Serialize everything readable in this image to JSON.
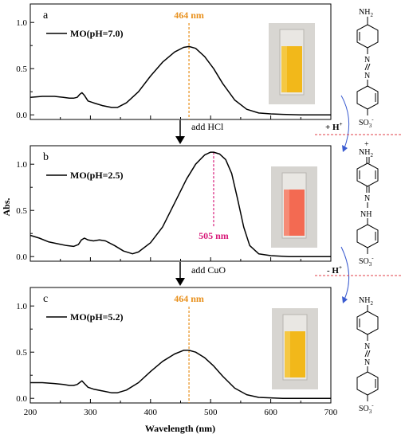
{
  "colors": {
    "line": "#000000",
    "peak_orange": "#e8901c",
    "peak_magenta": "#d81b7a",
    "divider_red": "#e0404a",
    "arc_blue": "#3a5bd0"
  },
  "y_axis_label": "Abs.",
  "x_axis_label": "Wavelength (nm)",
  "x_ticks": [
    "200",
    "300",
    "400",
    "500",
    "600",
    "700"
  ],
  "steps": {
    "acid": "add HCl",
    "cuo": "add CuO"
  },
  "proton": {
    "plus": "+ H",
    "minus": "- H",
    "sup": "+"
  },
  "chem": {
    "nh2": "NH",
    "so3": "SO",
    "nh": "NH",
    "two": "2",
    "three": "3",
    "minus": "-",
    "plus": "+"
  },
  "chart_data": [
    {
      "type": "line",
      "panel": "a",
      "xlim": [
        200,
        700
      ],
      "ylim": [
        -0.05,
        1.2
      ],
      "y_ticks": [
        "0.0",
        "0.5",
        "1.0"
      ],
      "series": [
        {
          "name": "MO(pH=7.0)",
          "x": [
            200,
            220,
            240,
            255,
            265,
            272,
            278,
            282,
            286,
            290,
            296,
            305,
            320,
            335,
            345,
            360,
            380,
            400,
            420,
            440,
            455,
            464,
            475,
            490,
            505,
            520,
            540,
            560,
            580,
            600,
            620,
            650,
            680,
            700
          ],
          "y": [
            0.19,
            0.2,
            0.2,
            0.19,
            0.18,
            0.18,
            0.19,
            0.22,
            0.24,
            0.21,
            0.15,
            0.13,
            0.1,
            0.08,
            0.08,
            0.13,
            0.25,
            0.42,
            0.57,
            0.68,
            0.73,
            0.74,
            0.72,
            0.63,
            0.5,
            0.34,
            0.16,
            0.06,
            0.02,
            0.01,
            0.005,
            0.0,
            0.0,
            0.0
          ]
        }
      ],
      "peak_label": "464 nm",
      "peak_x": 464
    },
    {
      "type": "line",
      "panel": "b",
      "xlim": [
        200,
        700
      ],
      "ylim": [
        -0.05,
        1.2
      ],
      "y_ticks": [
        "0.0",
        "0.5",
        "1.0"
      ],
      "series": [
        {
          "name": "MO(pH=2.5)",
          "x": [
            200,
            215,
            230,
            245,
            260,
            272,
            280,
            285,
            290,
            296,
            305,
            315,
            325,
            340,
            355,
            370,
            380,
            400,
            420,
            440,
            460,
            475,
            490,
            500,
            505,
            515,
            525,
            535,
            545,
            555,
            565,
            580,
            600,
            630,
            660,
            700
          ],
          "y": [
            0.23,
            0.2,
            0.16,
            0.14,
            0.12,
            0.11,
            0.13,
            0.18,
            0.2,
            0.18,
            0.17,
            0.18,
            0.17,
            0.12,
            0.06,
            0.03,
            0.05,
            0.15,
            0.32,
            0.58,
            0.84,
            1.0,
            1.1,
            1.13,
            1.13,
            1.11,
            1.05,
            0.9,
            0.62,
            0.32,
            0.12,
            0.03,
            0.01,
            0.0,
            0.0,
            0.0
          ]
        }
      ],
      "peak_label": "505 nm",
      "peak_x": 505
    },
    {
      "type": "line",
      "panel": "c",
      "xlim": [
        200,
        700
      ],
      "ylim": [
        -0.05,
        1.2
      ],
      "y_ticks": [
        "0.0",
        "0.5",
        "1.0"
      ],
      "series": [
        {
          "name": "MO(pH=5.2)",
          "x": [
            200,
            220,
            240,
            255,
            265,
            272,
            278,
            282,
            286,
            290,
            296,
            305,
            320,
            335,
            345,
            360,
            380,
            400,
            420,
            440,
            455,
            464,
            475,
            490,
            505,
            520,
            540,
            560,
            580,
            600,
            620,
            650,
            680,
            700
          ],
          "y": [
            0.17,
            0.17,
            0.16,
            0.15,
            0.14,
            0.14,
            0.15,
            0.17,
            0.19,
            0.16,
            0.12,
            0.1,
            0.08,
            0.06,
            0.06,
            0.09,
            0.17,
            0.29,
            0.4,
            0.48,
            0.52,
            0.52,
            0.5,
            0.44,
            0.35,
            0.24,
            0.11,
            0.04,
            0.01,
            0.005,
            0.0,
            0.0,
            0.0,
            0.0
          ]
        }
      ],
      "peak_label": "464 nm",
      "peak_x": 464
    }
  ]
}
